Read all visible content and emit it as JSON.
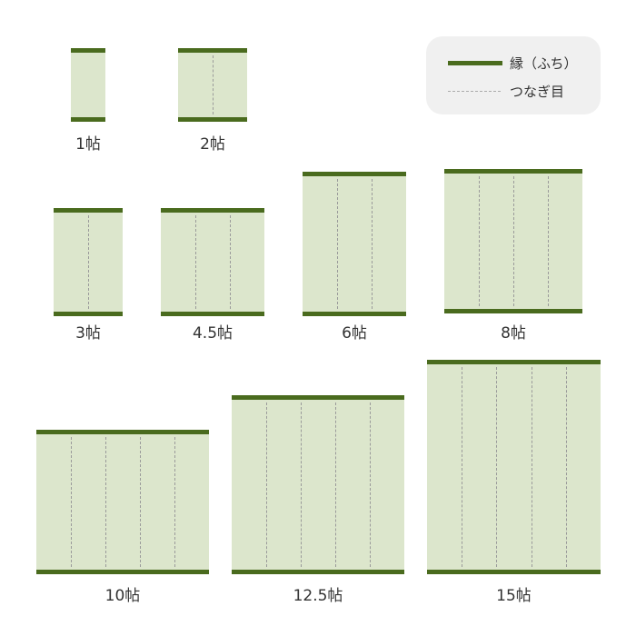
{
  "colors": {
    "edge": "#4a6b1e",
    "tatami": "#dce6cc",
    "seam": "#9a9a9a",
    "legend_bg": "#f0f0f0"
  },
  "legend": {
    "edge_label": "縁（ふち）",
    "seam_label": "つなぎ目"
  },
  "mats": [
    {
      "label": "1帖",
      "columns": 1
    },
    {
      "label": "2帖",
      "columns": 2
    },
    {
      "label": "3帖",
      "columns": 2
    },
    {
      "label": "4.5帖",
      "columns": 3
    },
    {
      "label": "6帖",
      "columns": 3
    },
    {
      "label": "8帖",
      "columns": 4
    },
    {
      "label": "10帖",
      "columns": 5
    },
    {
      "label": "12.5帖",
      "columns": 5
    },
    {
      "label": "15帖",
      "columns": 5
    }
  ]
}
